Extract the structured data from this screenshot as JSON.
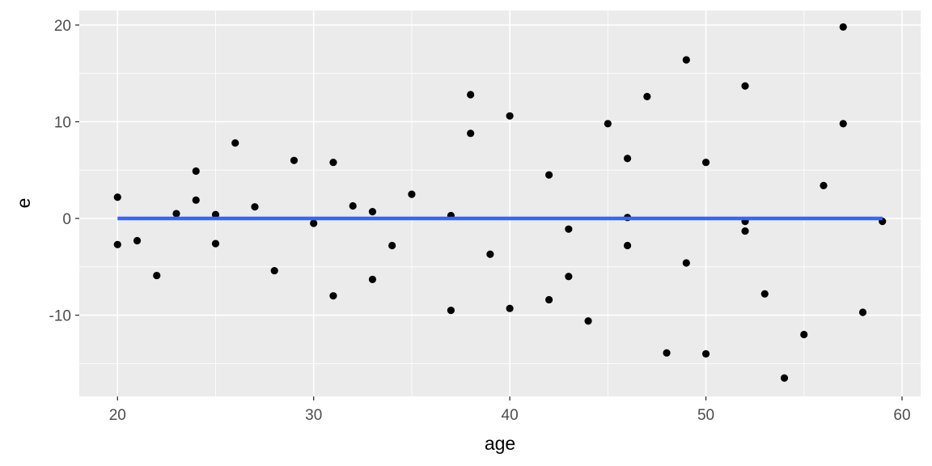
{
  "chart_data": {
    "type": "scatter",
    "xlabel": "age",
    "ylabel": "e",
    "xlim": [
      18.05,
      60.95
    ],
    "ylim": [
      -18.4,
      21.5
    ],
    "x_ticks": [
      20,
      30,
      40,
      50,
      60
    ],
    "y_ticks": [
      -10,
      0,
      10,
      20
    ],
    "grid": true,
    "colors": {
      "panel_background": "#EBEBEB",
      "grid_line": "#FFFFFF",
      "points": "#000000",
      "fit_line": "#3366FF"
    },
    "points": [
      {
        "x": 20,
        "y": 2.2
      },
      {
        "x": 20,
        "y": -2.7
      },
      {
        "x": 21,
        "y": -2.3
      },
      {
        "x": 22,
        "y": -5.9
      },
      {
        "x": 23,
        "y": 0.5
      },
      {
        "x": 24,
        "y": 4.9
      },
      {
        "x": 24,
        "y": 1.9
      },
      {
        "x": 25,
        "y": 0.4
      },
      {
        "x": 25,
        "y": -2.6
      },
      {
        "x": 26,
        "y": 7.8
      },
      {
        "x": 27,
        "y": 1.2
      },
      {
        "x": 28,
        "y": -5.4
      },
      {
        "x": 29,
        "y": 6.0
      },
      {
        "x": 30,
        "y": -0.5
      },
      {
        "x": 31,
        "y": 5.8
      },
      {
        "x": 31,
        "y": -8.0
      },
      {
        "x": 32,
        "y": 1.3
      },
      {
        "x": 33,
        "y": 0.7
      },
      {
        "x": 33,
        "y": -6.3
      },
      {
        "x": 34,
        "y": -2.8
      },
      {
        "x": 35,
        "y": 2.5
      },
      {
        "x": 37,
        "y": 0.3
      },
      {
        "x": 37,
        "y": -9.5
      },
      {
        "x": 38,
        "y": 12.8
      },
      {
        "x": 38,
        "y": 8.8
      },
      {
        "x": 39,
        "y": -3.7
      },
      {
        "x": 40,
        "y": 10.6
      },
      {
        "x": 40,
        "y": -9.3
      },
      {
        "x": 42,
        "y": 4.5
      },
      {
        "x": 42,
        "y": -8.4
      },
      {
        "x": 43,
        "y": -1.1
      },
      {
        "x": 43,
        "y": -6.0
      },
      {
        "x": 44,
        "y": -10.6
      },
      {
        "x": 45,
        "y": 9.8
      },
      {
        "x": 46,
        "y": 6.2
      },
      {
        "x": 46,
        "y": 0.1
      },
      {
        "x": 46,
        "y": -2.8
      },
      {
        "x": 47,
        "y": 12.6
      },
      {
        "x": 48,
        "y": -13.9
      },
      {
        "x": 49,
        "y": 16.4
      },
      {
        "x": 49,
        "y": -4.6
      },
      {
        "x": 50,
        "y": 5.8
      },
      {
        "x": 50,
        "y": -14.0
      },
      {
        "x": 52,
        "y": 13.7
      },
      {
        "x": 52,
        "y": -0.3
      },
      {
        "x": 52,
        "y": -1.3
      },
      {
        "x": 53,
        "y": -7.8
      },
      {
        "x": 54,
        "y": -16.5
      },
      {
        "x": 55,
        "y": -12.0
      },
      {
        "x": 56,
        "y": 3.4
      },
      {
        "x": 57,
        "y": 19.8
      },
      {
        "x": 57,
        "y": 9.8
      },
      {
        "x": 58,
        "y": -9.7
      },
      {
        "x": 59,
        "y": -0.3
      }
    ],
    "fit_line": {
      "x": [
        20,
        59
      ],
      "y": [
        0,
        0
      ]
    }
  }
}
